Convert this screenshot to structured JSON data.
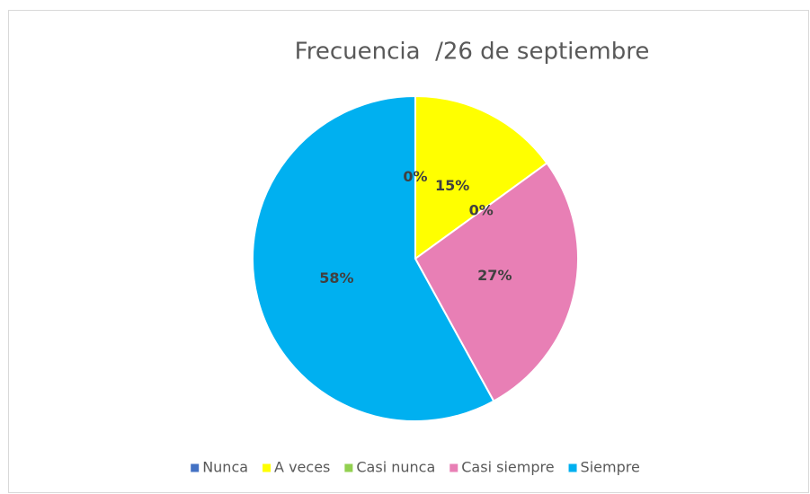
{
  "chart_data": {
    "type": "pie",
    "title": "Frecuencia  /26 de septiembre",
    "categories": [
      "Nunca",
      "A veces",
      "Casi nunca",
      "Casi siempre",
      "Siempre"
    ],
    "values": [
      0,
      15,
      0,
      27,
      58
    ],
    "value_labels": [
      "0%",
      "15%",
      "0%",
      "27%",
      "58%"
    ],
    "colors": [
      "#4472c4",
      "#ffff00",
      "#92d050",
      "#e87fb5",
      "#00b0f0"
    ],
    "legend": "bottom"
  }
}
